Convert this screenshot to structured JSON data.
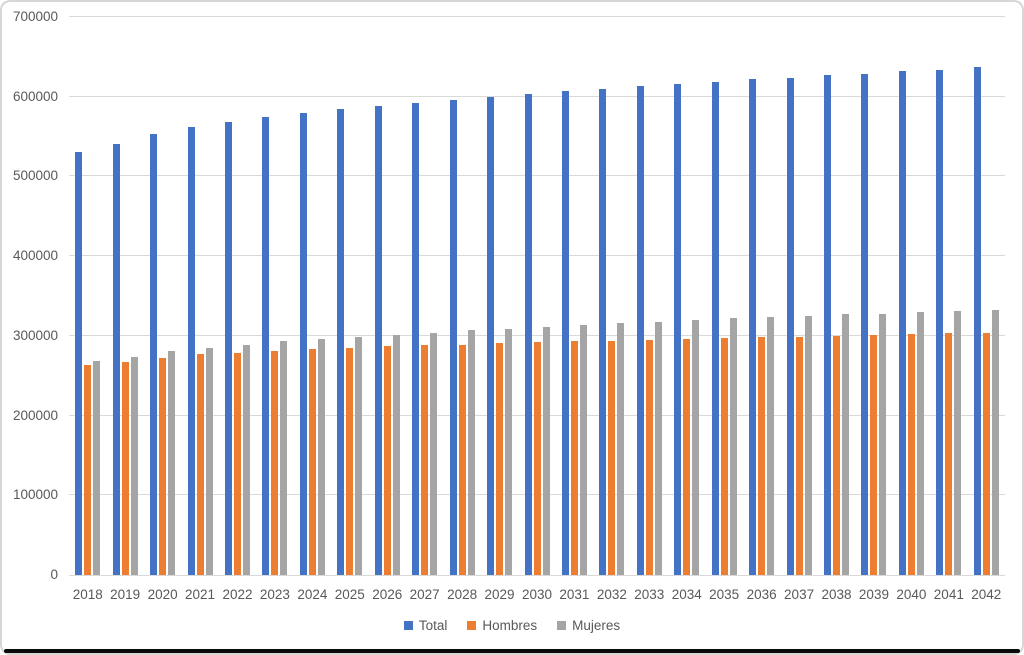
{
  "chart_data": {
    "type": "bar",
    "title": "",
    "xlabel": "",
    "ylabel": "",
    "categories": [
      "2018",
      "2019",
      "2020",
      "2021",
      "2022",
      "2023",
      "2024",
      "2025",
      "2026",
      "2027",
      "2028",
      "2029",
      "2030",
      "2031",
      "2032",
      "2033",
      "2034",
      "2035",
      "2036",
      "2037",
      "2038",
      "2039",
      "2040",
      "2041",
      "2042"
    ],
    "series": [
      {
        "name": "Total",
        "color": "#4472C4",
        "values": [
          531000,
          541000,
          553000,
          562000,
          568000,
          574000,
          579000,
          584000,
          588000,
          592000,
          596000,
          600000,
          603000,
          607000,
          610000,
          613000,
          616000,
          619000,
          622000,
          624000,
          627000,
          629000,
          632000,
          634000,
          637000
        ]
      },
      {
        "name": "Hombres",
        "color": "#ED7D31",
        "values": [
          263000,
          267000,
          272000,
          277000,
          279000,
          281000,
          283000,
          285000,
          287000,
          288000,
          289000,
          291000,
          292000,
          293000,
          294000,
          295000,
          296000,
          297000,
          298000,
          299000,
          300000,
          301000,
          302000,
          303000,
          304000
        ]
      },
      {
        "name": "Mujeres",
        "color": "#A5A5A5",
        "values": [
          268000,
          274000,
          281000,
          285000,
          289000,
          293000,
          296000,
          299000,
          301000,
          304000,
          307000,
          309000,
          311000,
          314000,
          316000,
          318000,
          320000,
          322000,
          324000,
          325000,
          327000,
          328000,
          330000,
          331000,
          333000
        ]
      }
    ],
    "y_axis": {
      "min": 0,
      "max": 700000,
      "step": 100000,
      "tick_labels": [
        "0",
        "100000",
        "200000",
        "300000",
        "400000",
        "500000",
        "600000",
        "700000"
      ]
    },
    "grid": true,
    "legend_position": "bottom"
  },
  "colors": {
    "gridline": "#d9d9d9",
    "axis_text": "#595959",
    "background": "#ffffff"
  }
}
